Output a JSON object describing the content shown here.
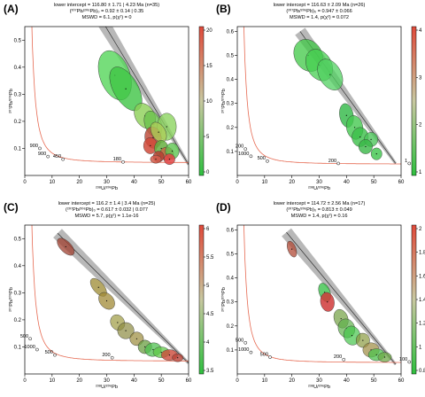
{
  "panels": [
    {
      "id": "A",
      "letter": "(A)",
      "header": [
        "lower intercept = 116.80 ± 1.71 | 4.23 Ma (n=35)",
        "(²⁰⁷Pb/²⁰⁶Pb)₀ = 0.92 ± 0.14 | 0.35",
        "MSWD = 6.1, p(χ²) = 0"
      ],
      "xlabel": "²³⁸U/²⁰⁶Pb",
      "ylabel": "²⁰⁷Pb/²⁰⁶Pb",
      "scalebar": {
        "min": 0,
        "max": 22,
        "ticks": [
          "20",
          "15",
          "10",
          "5",
          "0"
        ]
      },
      "ellipses": [
        {
          "x": 33,
          "y": 0.37,
          "rx": 5.5,
          "ry": 0.095,
          "a": -20,
          "c": "#55d65a",
          "o": 0.8
        },
        {
          "x": 37,
          "y": 0.32,
          "rx": 4.5,
          "ry": 0.09,
          "a": -30,
          "c": "#3fc445",
          "o": 0.8
        },
        {
          "x": 44,
          "y": 0.22,
          "rx": 3.5,
          "ry": 0.05,
          "a": -30,
          "c": "#8ccf56",
          "o": 0.8
        },
        {
          "x": 47,
          "y": 0.19,
          "rx": 3,
          "ry": 0.05,
          "a": -20,
          "c": "#6ac04c",
          "o": 0.8
        },
        {
          "x": 52,
          "y": 0.18,
          "rx": 3.5,
          "ry": 0.05,
          "a": 0,
          "c": "#8cd460",
          "o": 0.8
        },
        {
          "x": 47,
          "y": 0.14,
          "rx": 3,
          "ry": 0.04,
          "a": -10,
          "c": "#c05040",
          "o": 0.85
        },
        {
          "x": 49,
          "y": 0.16,
          "rx": 2.5,
          "ry": 0.04,
          "a": -30,
          "c": "#aacd58",
          "o": 0.8
        },
        {
          "x": 46,
          "y": 0.11,
          "rx": 2.5,
          "ry": 0.03,
          "a": 0,
          "c": "#d04a3a",
          "o": 0.85
        },
        {
          "x": 50,
          "y": 0.1,
          "rx": 2.5,
          "ry": 0.03,
          "a": 0,
          "c": "#65b040",
          "o": 0.85
        },
        {
          "x": 52,
          "y": 0.08,
          "rx": 2.5,
          "ry": 0.025,
          "a": 0,
          "c": "#c86a44",
          "o": 0.85
        },
        {
          "x": 49,
          "y": 0.07,
          "rx": 2,
          "ry": 0.02,
          "a": 0,
          "c": "#b63f32",
          "o": 0.85
        },
        {
          "x": 54,
          "y": 0.09,
          "rx": 2.5,
          "ry": 0.03,
          "a": 0,
          "c": "#5cc450",
          "o": 0.8
        },
        {
          "x": 48,
          "y": 0.06,
          "rx": 2,
          "ry": 0.015,
          "a": 0,
          "c": "#d05a4a",
          "o": 0.85
        },
        {
          "x": 53,
          "y": 0.06,
          "rx": 2,
          "ry": 0.02,
          "a": 0,
          "c": "#e04444",
          "o": 0.85
        }
      ],
      "ages": [
        {
          "label": "900",
          "x": 5.5,
          "y": 0.1
        },
        {
          "label": "900",
          "x": 8.5,
          "y": 0.07
        },
        {
          "label": "450",
          "x": 14,
          "y": 0.06
        },
        {
          "label": "180",
          "x": 36,
          "y": 0.05
        }
      ],
      "xlim": [
        0,
        60
      ],
      "ylim": [
        0,
        0.55
      ],
      "xticks": [
        0,
        10,
        20,
        30,
        40,
        50,
        60
      ],
      "yticks": [
        0.1,
        0.2,
        0.3,
        0.4,
        0.5
      ],
      "line": {
        "x0": 29,
        "y0": 0.56,
        "x1": 60,
        "y1": 0.04
      }
    },
    {
      "id": "B",
      "letter": "(B)",
      "header": [
        "lower intercept = 116.63 ± 2.09 Ma (n=26)",
        "(²⁰⁷Pb/²⁰⁶Pb)₀ = 0.947 ± 0.066",
        "MSWD = 1.4, p(χ²) = 0.072"
      ],
      "xlabel": "²³⁸U/²⁰⁶Pb",
      "ylabel": "²⁰⁷Pb/²⁰⁶Pb",
      "scalebar": {
        "min": 0,
        "max": 4,
        "ticks": [
          "4",
          "3",
          "2",
          "1"
        ]
      },
      "ellipses": [
        {
          "x": 26,
          "y": 0.5,
          "rx": 5,
          "ry": 0.07,
          "a": -30,
          "c": "#3fc845",
          "o": 0.75
        },
        {
          "x": 30,
          "y": 0.46,
          "rx": 4.5,
          "ry": 0.07,
          "a": -30,
          "c": "#45cf50",
          "o": 0.75
        },
        {
          "x": 34,
          "y": 0.42,
          "rx": 4,
          "ry": 0.07,
          "a": -30,
          "c": "#50d060",
          "o": 0.75
        },
        {
          "x": 40,
          "y": 0.25,
          "rx": 2.5,
          "ry": 0.05,
          "a": -10,
          "c": "#2fb845",
          "o": 0.8
        },
        {
          "x": 43,
          "y": 0.2,
          "rx": 3,
          "ry": 0.05,
          "a": -10,
          "c": "#45c850",
          "o": 0.8
        },
        {
          "x": 45,
          "y": 0.16,
          "rx": 3,
          "ry": 0.04,
          "a": 0,
          "c": "#3bbf48",
          "o": 0.8
        },
        {
          "x": 49,
          "y": 0.15,
          "rx": 2.5,
          "ry": 0.03,
          "a": 0,
          "c": "#4ec65b",
          "o": 0.8
        },
        {
          "x": 47,
          "y": 0.12,
          "rx": 2.5,
          "ry": 0.03,
          "a": 0,
          "c": "#38b846",
          "o": 0.8
        },
        {
          "x": 51,
          "y": 0.09,
          "rx": 2,
          "ry": 0.025,
          "a": 0,
          "c": "#3cc44a",
          "o": 0.8
        }
      ],
      "ages": [
        {
          "label": "200",
          "x": 3,
          "y": 0.11
        },
        {
          "label": "1000",
          "x": 5,
          "y": 0.08
        },
        {
          "label": "500",
          "x": 11,
          "y": 0.06
        },
        {
          "label": "200",
          "x": 37,
          "y": 0.05
        },
        {
          "label": "1",
          "x": 63,
          "y": 0.05
        }
      ],
      "xlim": [
        0,
        60
      ],
      "ylim": [
        0,
        0.62
      ],
      "xticks": [
        0,
        10,
        20,
        30,
        40,
        50,
        60
      ],
      "yticks": [
        0.1,
        0.2,
        0.3,
        0.4,
        0.5,
        0.6
      ],
      "line": {
        "x0": 23,
        "y0": 0.6,
        "x1": 58,
        "y1": 0.05
      }
    },
    {
      "id": "C",
      "letter": "(C)",
      "header": [
        "lower intercept = 116.2 ± 1.4 | 3.4 Ma (n=25)",
        "(²⁰⁷Pb/²⁰⁶Pb)₀ = 0.617 ± 0.032 | 0.077",
        "MSWD = 5.7, p(χ²) = 1.1e-16"
      ],
      "xlabel": "²³⁸U/²⁰⁶Pb",
      "ylabel": "²⁰⁷Pb/²⁰⁶Pb",
      "scalebar": {
        "min": 3.5,
        "max": 6,
        "ticks": [
          "6",
          "5.5",
          "5",
          "4.5",
          "4",
          "3.5"
        ]
      },
      "ellipses": [
        {
          "x": 15,
          "y": 0.47,
          "rx": 2,
          "ry": 0.04,
          "a": -45,
          "c": "#a04030",
          "o": 0.75
        },
        {
          "x": 27,
          "y": 0.32,
          "rx": 2,
          "ry": 0.04,
          "a": -40,
          "c": "#9c8a30",
          "o": 0.75
        },
        {
          "x": 30,
          "y": 0.27,
          "rx": 2.5,
          "ry": 0.035,
          "a": -40,
          "c": "#a08a35",
          "o": 0.75
        },
        {
          "x": 34,
          "y": 0.19,
          "rx": 2.5,
          "ry": 0.03,
          "a": -30,
          "c": "#9c9a40",
          "o": 0.7
        },
        {
          "x": 37,
          "y": 0.16,
          "rx": 3,
          "ry": 0.03,
          "a": -20,
          "c": "#8c8a40",
          "o": 0.7
        },
        {
          "x": 41,
          "y": 0.13,
          "rx": 2.5,
          "ry": 0.025,
          "a": -20,
          "c": "#9a8a3a",
          "o": 0.7
        },
        {
          "x": 44,
          "y": 0.1,
          "rx": 2.5,
          "ry": 0.025,
          "a": -20,
          "c": "#6a9e40",
          "o": 0.75
        },
        {
          "x": 47,
          "y": 0.09,
          "rx": 3,
          "ry": 0.025,
          "a": -10,
          "c": "#4fc050",
          "o": 0.75
        },
        {
          "x": 50,
          "y": 0.08,
          "rx": 3,
          "ry": 0.02,
          "a": 0,
          "c": "#60c848",
          "o": 0.75
        },
        {
          "x": 53,
          "y": 0.07,
          "rx": 3,
          "ry": 0.02,
          "a": 0,
          "c": "#cc4a3a",
          "o": 0.8
        },
        {
          "x": 56,
          "y": 0.06,
          "rx": 2,
          "ry": 0.015,
          "a": 0,
          "c": "#b84438",
          "o": 0.8
        }
      ],
      "ages": [
        {
          "label": "500",
          "x": 2,
          "y": 0.13
        },
        {
          "label": "1000",
          "x": 4.5,
          "y": 0.09
        },
        {
          "label": "500",
          "x": 11,
          "y": 0.07
        },
        {
          "label": "200",
          "x": 32,
          "y": 0.06
        }
      ],
      "xlim": [
        0,
        60
      ],
      "ylim": [
        0,
        0.55
      ],
      "xticks": [
        0,
        10,
        20,
        30,
        40,
        50,
        60
      ],
      "yticks": [
        0.1,
        0.2,
        0.3,
        0.4,
        0.5
      ],
      "line": {
        "x0": 12,
        "y0": 0.52,
        "x1": 60,
        "y1": 0.04
      }
    },
    {
      "id": "D",
      "letter": "(D)",
      "header": [
        "lower intercept = 114.72 ± 2.56 Ma (n=17)",
        "(²⁰⁷Pb/²⁰⁶Pb)₀ = 0.813 ± 0.049",
        "MSWD = 1.4, p(χ²) = 0.16"
      ],
      "xlabel": "²³⁸U/²⁰⁶Pb",
      "ylabel": "²⁰⁷Pb/²⁰⁶Pb",
      "scalebar": {
        "min": 0.8,
        "max": 2,
        "ticks": [
          "2",
          "1.8",
          "1.6",
          "1.4",
          "1.2",
          "1",
          "0.8"
        ]
      },
      "ellipses": [
        {
          "x": 20,
          "y": 0.52,
          "rx": 1.5,
          "ry": 0.035,
          "a": -20,
          "c": "#b04a35",
          "o": 0.75
        },
        {
          "x": 32,
          "y": 0.34,
          "rx": 2,
          "ry": 0.04,
          "a": -20,
          "c": "#2fbd3f",
          "o": 0.75
        },
        {
          "x": 33,
          "y": 0.3,
          "rx": 2.5,
          "ry": 0.04,
          "a": -10,
          "c": "#d03a3a",
          "o": 0.85
        },
        {
          "x": 38,
          "y": 0.23,
          "rx": 2.5,
          "ry": 0.04,
          "a": -20,
          "c": "#70a040",
          "o": 0.7
        },
        {
          "x": 40,
          "y": 0.19,
          "rx": 3,
          "ry": 0.04,
          "a": -20,
          "c": "#5eb04a",
          "o": 0.7
        },
        {
          "x": 42,
          "y": 0.16,
          "rx": 3,
          "ry": 0.04,
          "a": -15,
          "c": "#45c54a",
          "o": 0.7
        },
        {
          "x": 46,
          "y": 0.14,
          "rx": 2.5,
          "ry": 0.03,
          "a": -10,
          "c": "#8a9a40",
          "o": 0.7
        },
        {
          "x": 49,
          "y": 0.1,
          "rx": 3,
          "ry": 0.03,
          "a": 0,
          "c": "#9c8a40",
          "o": 0.7
        },
        {
          "x": 51,
          "y": 0.08,
          "rx": 3,
          "ry": 0.025,
          "a": 0,
          "c": "#4ec24e",
          "o": 0.75
        },
        {
          "x": 54,
          "y": 0.07,
          "rx": 2.5,
          "ry": 0.02,
          "a": 0,
          "c": "#6eaa48",
          "o": 0.75
        }
      ],
      "ages": [
        {
          "label": "500",
          "x": 3,
          "y": 0.13
        },
        {
          "label": "1000",
          "x": 5,
          "y": 0.09
        },
        {
          "label": "500",
          "x": 12,
          "y": 0.07
        },
        {
          "label": "200",
          "x": 39,
          "y": 0.06
        },
        {
          "label": "100",
          "x": 63,
          "y": 0.05
        }
      ],
      "xlim": [
        0,
        60
      ],
      "ylim": [
        0,
        0.62
      ],
      "xticks": [
        0,
        10,
        20,
        30,
        40,
        50,
        60
      ],
      "yticks": [
        0.1,
        0.2,
        0.3,
        0.4,
        0.5,
        0.6
      ],
      "line": {
        "x0": 18,
        "y0": 0.59,
        "x1": 58,
        "y1": 0.04
      }
    }
  ],
  "chart_data": [
    {
      "type": "scatter",
      "title": "",
      "xlabel": "²³⁸U/²⁰⁶Pb",
      "ylabel": "²⁰⁷Pb/²⁰⁶Pb",
      "xlim": [
        0,
        60
      ],
      "ylim": [
        0,
        0.55
      ],
      "annotation": "lower intercept = 116.80 ± 1.71 | 4.23 Ma (n=35)"
    },
    {
      "type": "scatter",
      "title": "",
      "xlabel": "²³⁸U/²⁰⁶Pb",
      "ylabel": "²⁰⁷Pb/²⁰⁶Pb",
      "xlim": [
        0,
        60
      ],
      "ylim": [
        0,
        0.62
      ],
      "annotation": "lower intercept = 116.63 ± 2.09 Ma (n=26)"
    },
    {
      "type": "scatter",
      "title": "",
      "xlabel": "²³⁸U/²⁰⁶Pb",
      "ylabel": "²⁰⁷Pb/²⁰⁶Pb",
      "xlim": [
        0,
        60
      ],
      "ylim": [
        0,
        0.55
      ],
      "annotation": "lower intercept = 116.2 ± 1.4 | 3.4 Ma (n=25)"
    },
    {
      "type": "scatter",
      "title": "",
      "xlabel": "²³⁸U/²⁰⁶Pb",
      "ylabel": "²⁰⁷Pb/²⁰⁶Pb",
      "xlim": [
        0,
        60
      ],
      "ylim": [
        0,
        0.62
      ],
      "annotation": "lower intercept = 114.72 ± 2.56 Ma (n=17)"
    }
  ]
}
